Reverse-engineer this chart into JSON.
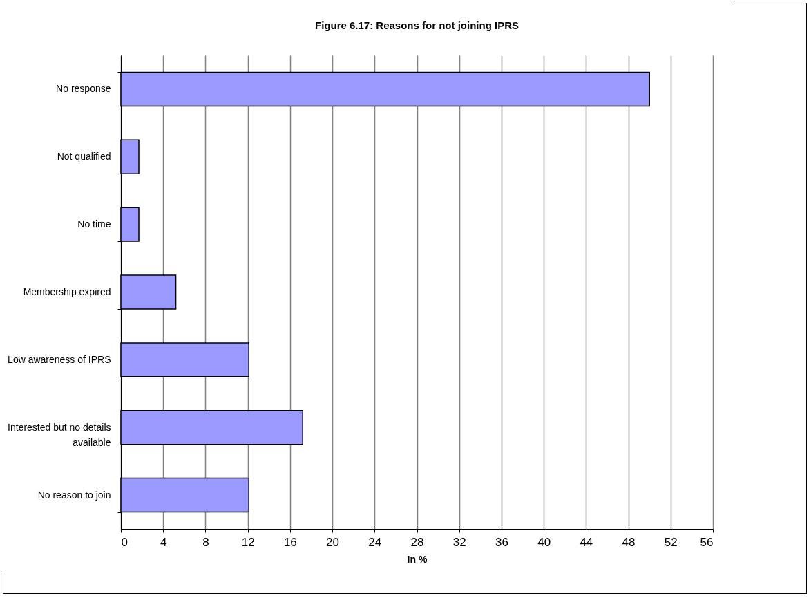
{
  "chart_data": {
    "type": "bar",
    "orientation": "horizontal",
    "title": "Figure 6.17: Reasons for not joining IPRS",
    "xlabel": "In %",
    "categories": [
      "No response",
      "Not qualified",
      "No time",
      "Membership expired",
      "Low awareness of IPRS",
      "Interested but no details available",
      "No reason to join"
    ],
    "values": [
      50,
      1.7,
      1.7,
      5.2,
      12.1,
      17.2,
      12.1
    ],
    "color": "#9999ff",
    "xlim": [
      0,
      56
    ],
    "xticks": [
      0,
      4,
      8,
      12,
      16,
      20,
      24,
      28,
      32,
      36,
      40,
      44,
      48,
      52,
      56
    ],
    "grid": "x"
  }
}
